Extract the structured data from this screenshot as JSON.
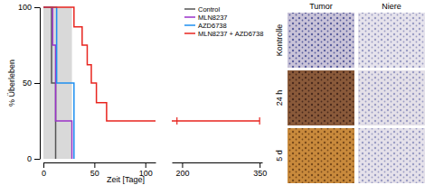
{
  "chart_data": {
    "type": "line",
    "x_label": "Zeit [Tage]",
    "y_label": "% Überleben",
    "x_segments": [
      {
        "xlim": [
          0,
          110
        ],
        "xticks": [
          0,
          50,
          100
        ]
      },
      {
        "xlim": [
          180,
          355
        ],
        "xticks": [
          200,
          350
        ]
      }
    ],
    "ylim": [
      0,
      100
    ],
    "yticks": [
      0,
      50,
      100
    ],
    "treatment_period": [
      0,
      28
    ],
    "legend": "top right",
    "series": [
      {
        "name": "Control",
        "color": "#555555",
        "line_style": "step",
        "x": [
          0,
          8,
          12
        ],
        "values": [
          100,
          50,
          0
        ]
      },
      {
        "name": "MLN8237",
        "color": "#9a32c8",
        "line_style": "step",
        "x": [
          0,
          9,
          12,
          28
        ],
        "values": [
          100,
          75,
          25,
          0
        ]
      },
      {
        "name": "AZD6738",
        "color": "#1e8ff0",
        "line_style": "step",
        "x": [
          0,
          13,
          30
        ],
        "values": [
          100,
          50,
          0
        ]
      },
      {
        "name": "MLN8237 + AZD6738",
        "color": "#e8251f",
        "line_style": "step",
        "x": [
          0,
          30,
          38,
          43,
          47,
          52,
          62,
          350
        ],
        "values": [
          100,
          87,
          75,
          62,
          50,
          37,
          25,
          25
        ],
        "censored": [
          190,
          350
        ]
      }
    ]
  },
  "histology": {
    "columns": [
      "Tumor",
      "Niere"
    ],
    "rows": [
      "Kontrolle",
      "24 h",
      "5 d"
    ]
  }
}
